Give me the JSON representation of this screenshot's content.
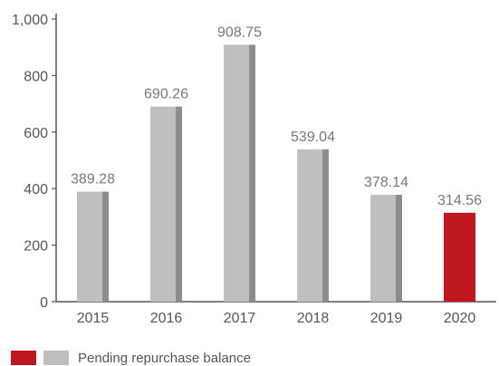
{
  "chart_data": {
    "type": "bar",
    "categories": [
      "2015",
      "2016",
      "2017",
      "2018",
      "2019",
      "2020"
    ],
    "series": [
      {
        "name": "Pending repurchase balance",
        "values": [
          389.28,
          690.26,
          908.75,
          539.04,
          378.14,
          314.56
        ],
        "labels": [
          "389.28",
          "690.26",
          "908.75",
          "539.04",
          "378.14",
          "314.56"
        ]
      }
    ],
    "yticks": [
      "0",
      "200",
      "400",
      "600",
      "800",
      "1,000"
    ],
    "ylim": [
      0,
      1000
    ],
    "title": "",
    "xlabel": "",
    "ylabel": "",
    "grid": false,
    "legend_position": "bottom-left",
    "colors": {
      "bar_face": "#bfbfbf",
      "bar_side": "#8c8c8c",
      "highlight": "#c0161f",
      "axis": "#555555"
    },
    "highlight_category": "2020"
  }
}
